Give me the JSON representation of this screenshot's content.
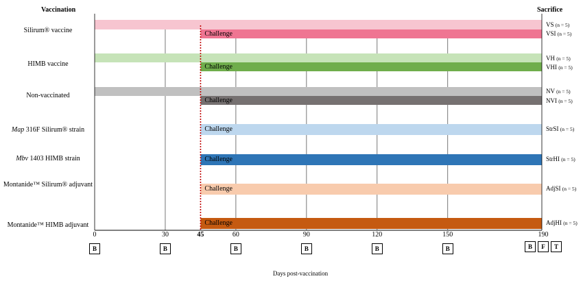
{
  "header": {
    "left": "Vaccination",
    "right": "Sacrifice"
  },
  "challenge_label": "Challenge",
  "x_axis": {
    "label": "Days post-vaccination",
    "ticks": [
      "0",
      "30",
      "45",
      "60",
      "90",
      "120",
      "150",
      "190"
    ],
    "start": 0,
    "end": 190,
    "challenge_day": 45
  },
  "bottom_markers": {
    "tick_boxes": [
      "B",
      "B",
      "B",
      "B",
      "B",
      "B"
    ],
    "final_boxes": [
      "B",
      "F",
      "T"
    ]
  },
  "groups": [
    {
      "label": "Silirum® vaccine",
      "italic": "",
      "bars": [
        {
          "color": "#f7c5d0",
          "challenged": false,
          "tag": "VS",
          "n": "(n = 5)"
        },
        {
          "color": "#ef7592",
          "challenged": true,
          "tag": "VSI",
          "n": "(n = 5)"
        }
      ]
    },
    {
      "label": "HIMB vaccine",
      "italic": "",
      "bars": [
        {
          "color": "#c6e3b8",
          "challenged": false,
          "tag": "VH",
          "n": "(n = 5)"
        },
        {
          "color": "#6fad4c",
          "challenged": true,
          "tag": "VHI",
          "n": "(n = 5)"
        }
      ]
    },
    {
      "label": "Non-vaccinated",
      "italic": "",
      "bars": [
        {
          "color": "#c0c0c0",
          "challenged": false,
          "tag": "NV",
          "n": "(n = 5)"
        },
        {
          "color": "#767171",
          "challenged": true,
          "tag": "NVI",
          "n": "(n = 5)"
        }
      ]
    },
    {
      "label": " 316F Silirum® strain",
      "italic": "Map",
      "bars": [
        {
          "color": "#bdd7ee",
          "challenged": true,
          "tag": "StrSI",
          "n": "(n = 5)"
        }
      ]
    },
    {
      "label": " 1403 HIMB strain",
      "italic": "Mbv",
      "bars": [
        {
          "color": "#2e75b6",
          "challenged": true,
          "tag": "StrHI",
          "n": "(n = 5)"
        }
      ]
    },
    {
      "label": "Montanide™ Silirum® adjuvant",
      "italic": "",
      "bars": [
        {
          "color": "#f8cbad",
          "challenged": true,
          "tag": "AdjSI",
          "n": "(n = 5)"
        }
      ]
    },
    {
      "label": "Montanide™ HIMB adjuvant",
      "italic": "",
      "bars": [
        {
          "color": "#c55a11",
          "challenged": true,
          "tag": "AdjHI",
          "n": "(n = 5)"
        }
      ]
    }
  ]
}
